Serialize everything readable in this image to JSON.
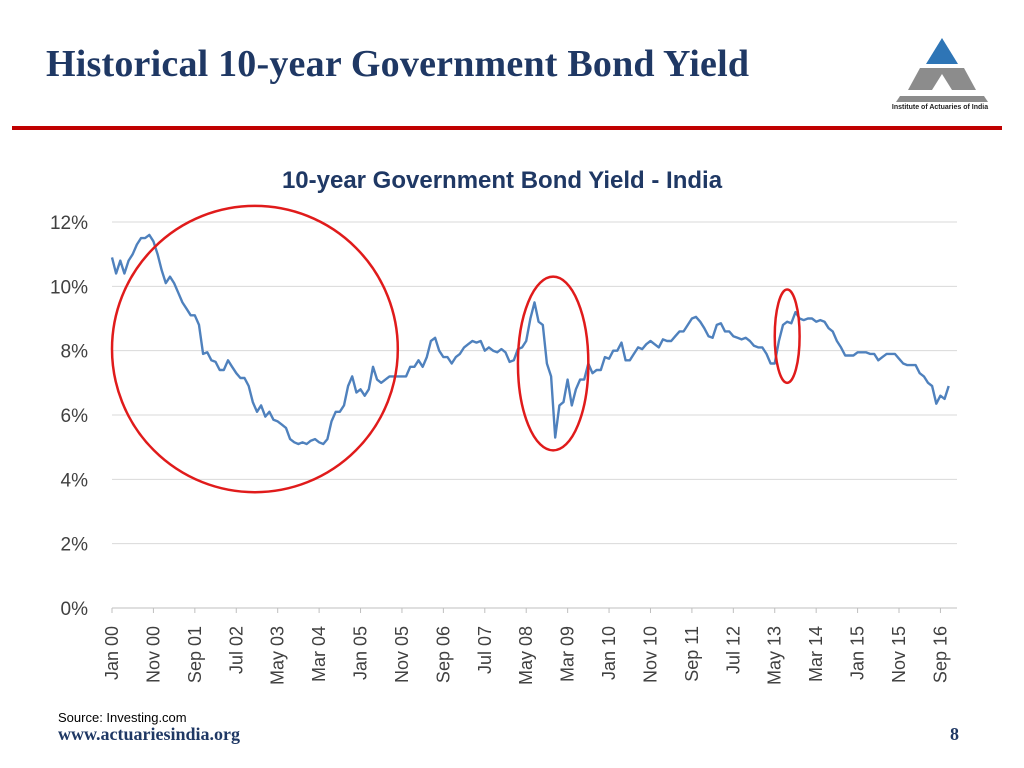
{
  "slide": {
    "title": "Historical 10-year Government Bond Yield",
    "logo_text": "Institute of Actuaries of India",
    "source": "Source: Investing.com",
    "footer_url": "www.actuariesindia.org",
    "page_number": "8"
  },
  "colors": {
    "title": "#1f3864",
    "rule": "#c00000",
    "line": "#4f81bd",
    "circle": "#e01b1b",
    "logo_blue": "#2e75b6",
    "logo_grey": "#8c8c8c"
  },
  "chart_data": {
    "type": "line",
    "title": "10-year Government Bond Yield - India",
    "xlabel": "",
    "ylabel": "",
    "ylim": [
      0,
      12
    ],
    "yticks": [
      "0%",
      "2%",
      "4%",
      "6%",
      "8%",
      "10%",
      "12%"
    ],
    "xticks": [
      "Jan 00",
      "Nov 00",
      "Sep 01",
      "Jul 02",
      "May 03",
      "Mar 04",
      "Jan 05",
      "Nov 05",
      "Sep 06",
      "Jul 07",
      "May 08",
      "Mar 09",
      "Jan 10",
      "Nov 10",
      "Sep 11",
      "Jul 12",
      "May 13",
      "Mar 14",
      "Jan 15",
      "Nov 15",
      "Sep 16"
    ],
    "grid": true,
    "legend": "none",
    "series": [
      {
        "x_start": "Jan 00",
        "x_end": "Jan 17",
        "frequency": "monthly",
        "values": [
          10.9,
          10.4,
          10.8,
          10.4,
          10.8,
          11.0,
          11.3,
          11.5,
          11.5,
          11.6,
          11.4,
          11.0,
          10.5,
          10.1,
          10.3,
          10.1,
          9.8,
          9.5,
          9.3,
          9.1,
          9.1,
          8.8,
          7.9,
          7.95,
          7.7,
          7.65,
          7.4,
          7.4,
          7.7,
          7.5,
          7.3,
          7.15,
          7.15,
          6.9,
          6.4,
          6.1,
          6.3,
          5.95,
          6.1,
          5.85,
          5.8,
          5.7,
          5.6,
          5.25,
          5.15,
          5.1,
          5.15,
          5.1,
          5.2,
          5.25,
          5.15,
          5.1,
          5.25,
          5.8,
          6.1,
          6.1,
          6.3,
          6.9,
          7.2,
          6.7,
          6.8,
          6.6,
          6.8,
          7.5,
          7.1,
          7.0,
          7.1,
          7.2,
          7.2,
          7.2,
          7.2,
          7.2,
          7.5,
          7.5,
          7.7,
          7.5,
          7.8,
          8.3,
          8.4,
          8.0,
          7.8,
          7.8,
          7.6,
          7.8,
          7.9,
          8.1,
          8.2,
          8.3,
          8.25,
          8.3,
          8.0,
          8.1,
          8.0,
          7.95,
          8.05,
          7.95,
          7.65,
          7.7,
          8.05,
          8.1,
          8.3,
          9.0,
          9.5,
          8.9,
          8.8,
          7.6,
          7.2,
          5.3,
          6.3,
          6.4,
          7.1,
          6.3,
          6.8,
          7.1,
          7.1,
          7.6,
          7.3,
          7.4,
          7.4,
          7.8,
          7.75,
          8.0,
          8.0,
          8.25,
          7.7,
          7.7,
          7.9,
          8.1,
          8.05,
          8.2,
          8.3,
          8.2,
          8.1,
          8.35,
          8.3,
          8.3,
          8.45,
          8.6,
          8.6,
          8.8,
          9.0,
          9.05,
          8.9,
          8.7,
          8.45,
          8.4,
          8.8,
          8.85,
          8.6,
          8.6,
          8.45,
          8.4,
          8.35,
          8.4,
          8.3,
          8.15,
          8.1,
          8.1,
          7.9,
          7.6,
          7.6,
          8.3,
          8.8,
          8.9,
          8.85,
          9.2,
          9.0,
          8.95,
          9.0,
          9.0,
          8.9,
          8.95,
          8.9,
          8.7,
          8.6,
          8.3,
          8.1,
          7.85,
          7.85,
          7.85,
          7.95,
          7.95,
          7.95,
          7.9,
          7.9,
          7.7,
          7.8,
          7.9,
          7.9,
          7.9,
          7.75,
          7.6,
          7.55,
          7.55,
          7.55,
          7.3,
          7.2,
          7.0,
          6.9,
          6.35,
          6.6,
          6.5,
          6.9
        ]
      }
    ],
    "annotations": [
      {
        "shape": "ellipse",
        "from": "Jan 00",
        "to": "Oct 05",
        "y_range": [
          3.6,
          12.5
        ]
      },
      {
        "shape": "ellipse",
        "from": "Mar 08",
        "to": "Aug 09",
        "y_range": [
          4.9,
          10.3
        ]
      },
      {
        "shape": "ellipse",
        "from": "May 13",
        "to": "Nov 13",
        "y_range": [
          7.0,
          9.9
        ]
      }
    ]
  }
}
